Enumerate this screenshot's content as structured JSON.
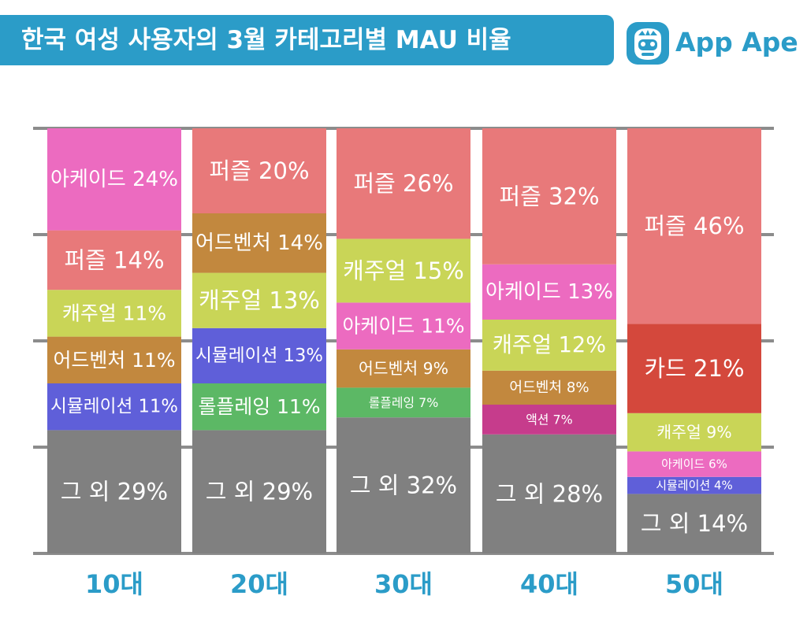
{
  "title": "한국 여성 사용자의 3월 카테고리별 MAU 비율",
  "brand": {
    "name": "App Ape",
    "accent": "#2b9cc8",
    "icon": "monkey-face-icon"
  },
  "chart_data": {
    "type": "bar",
    "stacked": true,
    "categories": [
      "10대",
      "20대",
      "30대",
      "40대",
      "50대"
    ],
    "ylim": [
      0,
      100
    ],
    "grid": true,
    "stacks": [
      {
        "category": "10대",
        "segments": [
          {
            "name": "그 외",
            "value": 29,
            "label": "그 외 29%",
            "color": "#808080"
          },
          {
            "name": "시뮬레이션",
            "value": 11,
            "label": "시뮬레이션 11%",
            "color": "#5f5fd9"
          },
          {
            "name": "어드벤처",
            "value": 11,
            "label": "어드벤처 11%",
            "color": "#c2883e"
          },
          {
            "name": "캐주얼",
            "value": 11,
            "label": "캐주얼 11%",
            "color": "#c9d557"
          },
          {
            "name": "퍼즐",
            "value": 14,
            "label": "퍼즐 14%",
            "color": "#e8797a"
          },
          {
            "name": "아케이드",
            "value": 24,
            "label": "아케이드 24%",
            "color": "#ec6bc0"
          }
        ]
      },
      {
        "category": "20대",
        "segments": [
          {
            "name": "그 외",
            "value": 29,
            "label": "그 외 29%",
            "color": "#808080"
          },
          {
            "name": "롤플레잉",
            "value": 11,
            "label": "롤플레잉 11%",
            "color": "#5cb865"
          },
          {
            "name": "시뮬레이션",
            "value": 13,
            "label": "시뮬레이션 13%",
            "color": "#5f5fd9"
          },
          {
            "name": "캐주얼",
            "value": 13,
            "label": "캐주얼 13%",
            "color": "#c9d557"
          },
          {
            "name": "어드벤처",
            "value": 14,
            "label": "어드벤처 14%",
            "color": "#c2883e"
          },
          {
            "name": "퍼즐",
            "value": 20,
            "label": "퍼즐 20%",
            "color": "#e8797a"
          }
        ]
      },
      {
        "category": "30대",
        "segments": [
          {
            "name": "그 외",
            "value": 32,
            "label": "그 외 32%",
            "color": "#808080"
          },
          {
            "name": "롤플레잉",
            "value": 7,
            "label": "롤플레잉 7%",
            "color": "#5cb865"
          },
          {
            "name": "어드벤처",
            "value": 9,
            "label": "어드벤처 9%",
            "color": "#c2883e"
          },
          {
            "name": "아케이드",
            "value": 11,
            "label": "아케이드 11%",
            "color": "#ec6bc0"
          },
          {
            "name": "캐주얼",
            "value": 15,
            "label": "캐주얼 15%",
            "color": "#c9d557"
          },
          {
            "name": "퍼즐",
            "value": 26,
            "label": "퍼즐 26%",
            "color": "#e8797a"
          }
        ]
      },
      {
        "category": "40대",
        "segments": [
          {
            "name": "그 외",
            "value": 28,
            "label": "그 외 28%",
            "color": "#808080"
          },
          {
            "name": "액션",
            "value": 7,
            "label": "액션 7%",
            "color": "#c63c8c"
          },
          {
            "name": "어드벤처",
            "value": 8,
            "label": "어드벤처 8%",
            "color": "#c2883e"
          },
          {
            "name": "캐주얼",
            "value": 12,
            "label": "캐주얼 12%",
            "color": "#c9d557"
          },
          {
            "name": "아케이드",
            "value": 13,
            "label": "아케이드 13%",
            "color": "#ec6bc0"
          },
          {
            "name": "퍼즐",
            "value": 32,
            "label": "퍼즐 32%",
            "color": "#e8797a"
          }
        ]
      },
      {
        "category": "50대",
        "segments": [
          {
            "name": "그 외",
            "value": 14,
            "label": "그 외 14%",
            "color": "#808080"
          },
          {
            "name": "시뮬레이션",
            "value": 4,
            "label": "시뮬레이션 4%",
            "color": "#5f5fd9"
          },
          {
            "name": "아케이드",
            "value": 6,
            "label": "아케이드 6%",
            "color": "#ec6bc0"
          },
          {
            "name": "캐주얼",
            "value": 9,
            "label": "캐주얼 9%",
            "color": "#c9d557"
          },
          {
            "name": "카드",
            "value": 21,
            "label": "카드 21%",
            "color": "#d4483c"
          },
          {
            "name": "퍼즐",
            "value": 46,
            "label": "퍼즐 46%",
            "color": "#e8797a"
          }
        ]
      }
    ]
  }
}
